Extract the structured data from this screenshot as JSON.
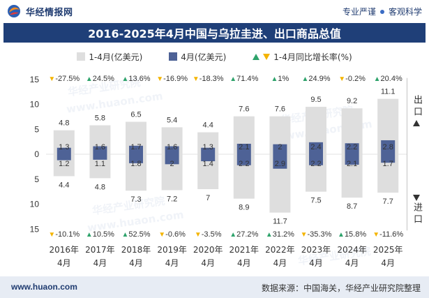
{
  "header": {
    "logo_text": "华经情报网",
    "slogan": [
      "专业严谨",
      "客观科学"
    ]
  },
  "footer": {
    "site": "www.huaon.com",
    "source": "数据来源：中国海关，华经产业研究院整理"
  },
  "watermark": {
    "text": "华经产业研究院",
    "url": "www.huaon.com"
  },
  "colors": {
    "title_bar": "#1f3f78",
    "cumulative": "#dedede",
    "monthly": "#4e6296",
    "up": "#2ea36b",
    "down": "#f4b400",
    "footer": "#e7ecf4",
    "brand": "#1f3b70"
  },
  "icons": {
    "logo": "logo-icon",
    "separator": "dot-icon",
    "up": "up-triangle-icon",
    "down": "down-triangle-icon"
  },
  "chart_data": {
    "type": "bar",
    "title": "2016-2025年4月中国与乌拉圭进、出口商品总值",
    "categories": [
      "2016年4月",
      "2017年4月",
      "2018年4月",
      "2019年4月",
      "2020年4月",
      "2021年4月",
      "2022年4月",
      "2023年4月",
      "2024年4月",
      "2025年4月"
    ],
    "groups": [
      "出口",
      "进口"
    ],
    "ylim": [
      -15,
      15
    ],
    "yticks": [
      15,
      10,
      5,
      0,
      -5,
      -10,
      -15
    ],
    "ytick_labels": [
      "15",
      "10",
      "5",
      "0",
      "5",
      "10",
      "15"
    ],
    "series": [
      {
        "name": "1-4月(亿美元)",
        "export": [
          4.8,
          5.8,
          6.5,
          5.4,
          4.4,
          7.6,
          7.6,
          9.5,
          9.2,
          11.1
        ],
        "import": [
          4.4,
          4.8,
          7.3,
          7.2,
          7,
          8.9,
          11.7,
          7.5,
          8.7,
          7.7
        ]
      },
      {
        "name": "4月(亿美元)",
        "export": [
          1.3,
          1.6,
          1.7,
          1.6,
          1.3,
          2.1,
          2,
          2.4,
          2.2,
          2.8
        ],
        "import": [
          1.2,
          1.1,
          1.8,
          2,
          1.4,
          2.2,
          2.9,
          2.2,
          2.1,
          1.7
        ]
      }
    ],
    "growth": {
      "name": "1-4月同比增长率(%)",
      "unit": "%",
      "export": [
        -27.5,
        24.5,
        13.6,
        -16.9,
        -18.3,
        71.4,
        1,
        24.9,
        -0.2,
        20.4
      ],
      "import": [
        -10.1,
        10.5,
        52.5,
        -0.6,
        -3.5,
        27.2,
        31.2,
        -35.3,
        15.8,
        -11.6
      ]
    },
    "legend_position": "top",
    "grid": false
  }
}
